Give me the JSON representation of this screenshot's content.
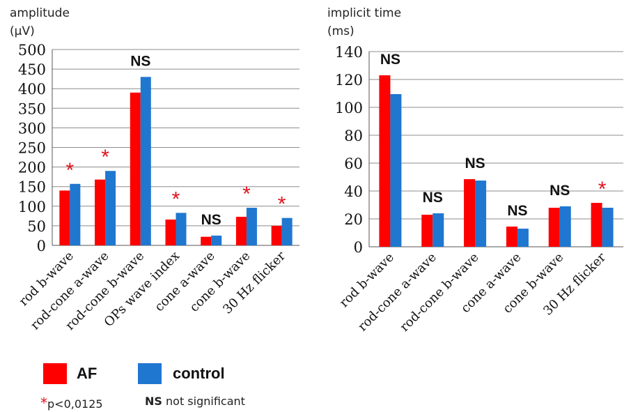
{
  "colors": {
    "af": "#ff0000",
    "control": "#1f77d0",
    "star": "#e0141e",
    "grid": "#8c8c8c",
    "axis": "#555555"
  },
  "legend": {
    "af_label": "AF",
    "control_label": "control",
    "star_symbol": "*",
    "star_note": "p<0,0125",
    "ns_symbol": "NS",
    "ns_note": "not significant"
  },
  "chart_data": [
    {
      "type": "bar",
      "ylabel_line1": "amplitude",
      "ylabel_line2": "(µV)",
      "ylim": [
        0,
        500
      ],
      "yticks": [
        0,
        50,
        100,
        150,
        200,
        250,
        300,
        350,
        400,
        450,
        500
      ],
      "grid": true,
      "categories": [
        "rod b-wave",
        "rod-cone a-wave",
        "rod-cone b-wave",
        "OPs wave index",
        "cone a-wave",
        "cone b-wave",
        "30 Hz flicker"
      ],
      "series": [
        {
          "name": "AF",
          "values": [
            140,
            168,
            390,
            66,
            22,
            73,
            50
          ]
        },
        {
          "name": "control",
          "values": [
            157,
            190,
            430,
            83,
            25,
            96,
            70
          ]
        }
      ],
      "annotations": [
        "*",
        "*",
        "NS",
        "*",
        "NS",
        "*",
        "*"
      ]
    },
    {
      "type": "bar",
      "ylabel_line1": "implicit time",
      "ylabel_line2": "(ms)",
      "ylim": [
        0,
        140
      ],
      "yticks": [
        0,
        20,
        40,
        60,
        80,
        100,
        120,
        140
      ],
      "grid": true,
      "categories": [
        "rod b-wave",
        "rod-cone a-wave",
        "rod-cone b-wave",
        "cone a-wave",
        "cone b-wave",
        "30 Hz flicker"
      ],
      "series": [
        {
          "name": "AF",
          "values": [
            123,
            23,
            48.5,
            14.5,
            28,
            31.5
          ]
        },
        {
          "name": "control",
          "values": [
            109.5,
            24,
            47.5,
            13,
            29,
            28
          ]
        }
      ],
      "annotations": [
        "NS",
        "NS",
        "NS",
        "NS",
        "NS",
        "*"
      ]
    }
  ]
}
